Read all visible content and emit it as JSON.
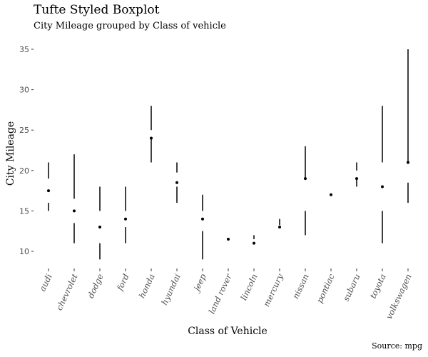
{
  "chart_data": {
    "type": "boxplot",
    "title": "Tufte Styled Boxplot",
    "subtitle": "City Mileage grouped by Class of vehicle",
    "caption": "Source: mpg",
    "xlabel": "Class of Vehicle",
    "ylabel": "City Mileage",
    "ylim": [
      8,
      35.5
    ],
    "yticks": [
      10,
      15,
      20,
      25,
      30,
      35
    ],
    "grid": false,
    "categories": [
      "audi",
      "chevrolet",
      "dodge",
      "ford",
      "honda",
      "hyundai",
      "jeep",
      "land rover",
      "lincoln",
      "mercury",
      "nissan",
      "pontiac",
      "subaru",
      "toyota",
      "volkswagen"
    ],
    "stats": [
      {
        "min": 15,
        "q1": 16,
        "median": 17.5,
        "q3": 19,
        "max": 21
      },
      {
        "min": 11,
        "q1": 13.5,
        "median": 15,
        "q3": 16.5,
        "max": 22
      },
      {
        "min": 9,
        "q1": 11,
        "median": 13,
        "q3": 15,
        "max": 18
      },
      {
        "min": 11,
        "q1": 13,
        "median": 14,
        "q3": 15,
        "max": 18
      },
      {
        "min": 21,
        "q1": 24,
        "median": 24,
        "q3": 25,
        "max": 28
      },
      {
        "min": 16,
        "q1": 18,
        "median": 18.5,
        "q3": 19.75,
        "max": 21
      },
      {
        "min": 9,
        "q1": 12.5,
        "median": 14,
        "q3": 15,
        "max": 17
      },
      {
        "min": 11.5,
        "q1": 11.5,
        "median": 11.5,
        "q3": 11.5,
        "max": 11.5
      },
      {
        "min": 11,
        "q1": 11,
        "median": 11,
        "q3": 11.5,
        "max": 12
      },
      {
        "min": 13,
        "q1": 13,
        "median": 13,
        "q3": 13.25,
        "max": 14
      },
      {
        "min": 12,
        "q1": 15,
        "median": 19,
        "q3": 19,
        "max": 23
      },
      {
        "min": 17,
        "q1": 17,
        "median": 17,
        "q3": 17,
        "max": 17
      },
      {
        "min": 18,
        "q1": 19,
        "median": 19,
        "q3": 20,
        "max": 21
      },
      {
        "min": 11,
        "q1": 15,
        "median": 18,
        "q3": 21,
        "max": 28
      },
      {
        "min": 16,
        "q1": 18.5,
        "median": 21,
        "q3": 21,
        "max": 35
      }
    ]
  }
}
